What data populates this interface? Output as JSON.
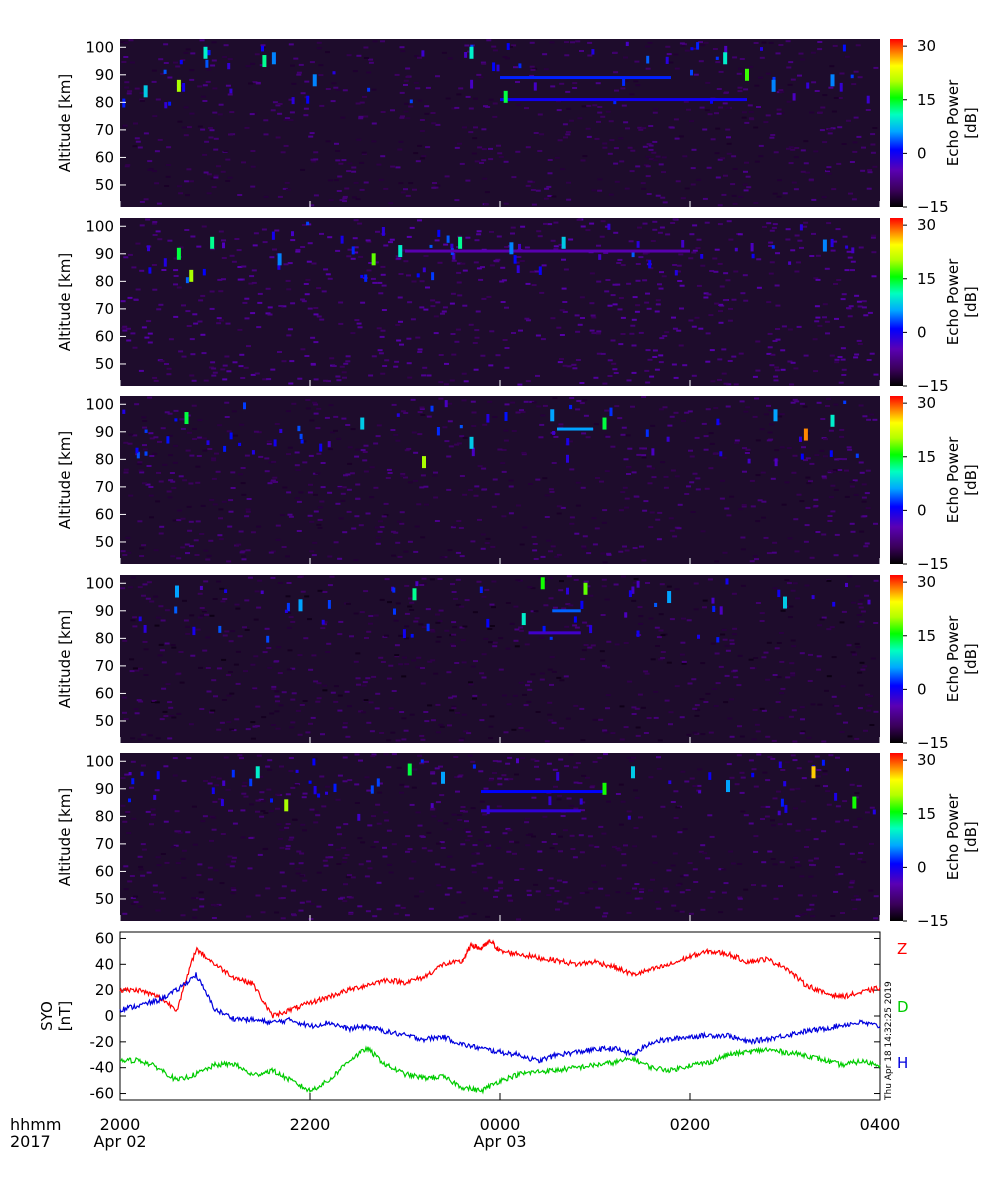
{
  "chart_data": [
    {
      "type": "heatmap",
      "panel": 1,
      "ylabel": "Altitude [km]",
      "yticks": [
        50,
        60,
        70,
        80,
        90,
        100
      ],
      "ylim": [
        42,
        103
      ],
      "colorbar": {
        "label_line1": "Echo Power",
        "label_line2": "[dB]",
        "ticks": [
          -15,
          0,
          15,
          30
        ],
        "range": [
          -15,
          32
        ]
      },
      "background_level_db": -12,
      "layers": [
        {
          "x_start": 0.0,
          "x_end": 2.6,
          "alt": 81,
          "db": 0
        },
        {
          "x_start": 0.0,
          "x_end": 1.8,
          "alt": 89,
          "db": 2
        }
      ],
      "echoes": [
        {
          "x": -3.73,
          "alt": 84,
          "db": 8
        },
        {
          "x": -3.38,
          "alt": 86,
          "db": 20
        },
        {
          "x": -3.1,
          "alt": 98,
          "db": 10
        },
        {
          "x": -2.48,
          "alt": 95,
          "db": 12
        },
        {
          "x": -2.38,
          "alt": 96,
          "db": 5
        },
        {
          "x": -1.95,
          "alt": 88,
          "db": 5
        },
        {
          "x": -0.3,
          "alt": 98,
          "db": 10
        },
        {
          "x": 0.06,
          "alt": 82,
          "db": 14
        },
        {
          "x": 2.37,
          "alt": 96,
          "db": 10
        },
        {
          "x": 2.6,
          "alt": 90,
          "db": 17
        },
        {
          "x": 2.88,
          "alt": 86,
          "db": 5
        },
        {
          "x": 3.5,
          "alt": 88,
          "db": 5
        }
      ]
    },
    {
      "type": "heatmap",
      "panel": 2,
      "ylabel": "Altitude [km]",
      "yticks": [
        50,
        60,
        70,
        80,
        90,
        100
      ],
      "ylim": [
        42,
        103
      ],
      "colorbar": {
        "label_line1": "Echo Power",
        "label_line2": "[dB]",
        "ticks": [
          -15,
          0,
          15,
          30
        ],
        "range": [
          -15,
          32
        ]
      },
      "background_level_db": -10,
      "layers": [
        {
          "x_start": -1.0,
          "x_end": 2.0,
          "alt": 91,
          "db": -5
        }
      ],
      "echoes": [
        {
          "x": -3.38,
          "alt": 90,
          "db": 14
        },
        {
          "x": -3.25,
          "alt": 82,
          "db": 20
        },
        {
          "x": -3.03,
          "alt": 94,
          "db": 12
        },
        {
          "x": -2.32,
          "alt": 88,
          "db": 5
        },
        {
          "x": -1.33,
          "alt": 88,
          "db": 18
        },
        {
          "x": -1.05,
          "alt": 91,
          "db": 10
        },
        {
          "x": -0.42,
          "alt": 94,
          "db": 12
        },
        {
          "x": 0.12,
          "alt": 92,
          "db": 5
        },
        {
          "x": 0.67,
          "alt": 94,
          "db": 8
        },
        {
          "x": 3.42,
          "alt": 93,
          "db": 5
        }
      ]
    },
    {
      "type": "heatmap",
      "panel": 3,
      "ylabel": "Altitude [km]",
      "yticks": [
        50,
        60,
        70,
        80,
        90,
        100
      ],
      "ylim": [
        42,
        103
      ],
      "colorbar": {
        "label_line1": "Echo Power",
        "label_line2": "[dB]",
        "ticks": [
          -15,
          0,
          15,
          30
        ],
        "range": [
          -15,
          32
        ]
      },
      "background_level_db": -12,
      "layers": [
        {
          "x_start": 0.6,
          "x_end": 0.98,
          "alt": 91,
          "db": 6
        }
      ],
      "echoes": [
        {
          "x": -3.3,
          "alt": 95,
          "db": 14
        },
        {
          "x": -1.45,
          "alt": 93,
          "db": 8
        },
        {
          "x": -0.8,
          "alt": 79,
          "db": 20
        },
        {
          "x": -0.3,
          "alt": 86,
          "db": 8
        },
        {
          "x": 0.55,
          "alt": 96,
          "db": 6
        },
        {
          "x": 1.1,
          "alt": 93,
          "db": 14
        },
        {
          "x": 2.9,
          "alt": 96,
          "db": 6
        },
        {
          "x": 3.22,
          "alt": 89,
          "db": 28
        },
        {
          "x": 3.5,
          "alt": 94,
          "db": 10
        }
      ]
    },
    {
      "type": "heatmap",
      "panel": 4,
      "ylabel": "Altitude [km]",
      "yticks": [
        50,
        60,
        70,
        80,
        90,
        100
      ],
      "ylim": [
        42,
        103
      ],
      "colorbar": {
        "label_line1": "Echo Power",
        "label_line2": "[dB]",
        "ticks": [
          -15,
          0,
          15,
          30
        ],
        "range": [
          -15,
          32
        ]
      },
      "background_level_db": -13,
      "layers": [
        {
          "x_start": 0.3,
          "x_end": 0.85,
          "alt": 82,
          "db": -3
        },
        {
          "x_start": 0.55,
          "x_end": 0.85,
          "alt": 90,
          "db": 4
        }
      ],
      "echoes": [
        {
          "x": -3.4,
          "alt": 97,
          "db": 6
        },
        {
          "x": -2.1,
          "alt": 92,
          "db": 6
        },
        {
          "x": -0.9,
          "alt": 96,
          "db": 12
        },
        {
          "x": 0.25,
          "alt": 87,
          "db": 10
        },
        {
          "x": 0.45,
          "alt": 100,
          "db": 16
        },
        {
          "x": 0.9,
          "alt": 98,
          "db": 18
        },
        {
          "x": 1.78,
          "alt": 95,
          "db": 6
        },
        {
          "x": 3.0,
          "alt": 93,
          "db": 8
        }
      ]
    },
    {
      "type": "heatmap",
      "panel": 5,
      "ylabel": "Altitude [km]",
      "yticks": [
        50,
        60,
        70,
        80,
        90,
        100
      ],
      "ylim": [
        42,
        103
      ],
      "colorbar": {
        "label_line1": "Echo Power",
        "label_line2": "[dB]",
        "ticks": [
          -15,
          0,
          15,
          30
        ],
        "range": [
          -15,
          32
        ]
      },
      "background_level_db": -12,
      "layers": [
        {
          "x_start": -0.2,
          "x_end": 0.85,
          "alt": 82,
          "db": -2
        },
        {
          "x_start": -0.2,
          "x_end": 1.1,
          "alt": 89,
          "db": 1
        }
      ],
      "echoes": [
        {
          "x": -2.55,
          "alt": 96,
          "db": 10
        },
        {
          "x": -2.25,
          "alt": 84,
          "db": 20
        },
        {
          "x": -0.95,
          "alt": 97,
          "db": 14
        },
        {
          "x": -0.6,
          "alt": 94,
          "db": 6
        },
        {
          "x": 1.1,
          "alt": 90,
          "db": 16
        },
        {
          "x": 1.4,
          "alt": 96,
          "db": 8
        },
        {
          "x": 2.4,
          "alt": 91,
          "db": 6
        },
        {
          "x": 3.3,
          "alt": 96,
          "db": 26
        },
        {
          "x": 3.73,
          "alt": 85,
          "db": 16
        }
      ]
    },
    {
      "type": "line",
      "panel": 6,
      "ylabel_line1": "SYO",
      "ylabel_line2": "[nT]",
      "ylim": [
        -65,
        65
      ],
      "yticks": [
        -60,
        -40,
        -20,
        0,
        20,
        40,
        60
      ],
      "series": [
        {
          "name": "Z",
          "color": "#ff0000",
          "x": [
            -4.0,
            -3.8,
            -3.6,
            -3.4,
            -3.2,
            -3.0,
            -2.8,
            -2.6,
            -2.4,
            -2.2,
            -2.0,
            -1.8,
            -1.6,
            -1.4,
            -1.2,
            -1.0,
            -0.8,
            -0.6,
            -0.4,
            -0.3,
            -0.2,
            -0.1,
            0.0,
            0.2,
            0.4,
            0.6,
            0.8,
            1.0,
            1.2,
            1.4,
            1.6,
            1.8,
            2.0,
            2.2,
            2.4,
            2.6,
            2.8,
            3.0,
            3.2,
            3.4,
            3.6,
            3.8,
            4.0
          ],
          "y": [
            20,
            20,
            15,
            5,
            52,
            40,
            30,
            25,
            0,
            5,
            10,
            15,
            20,
            24,
            28,
            26,
            30,
            40,
            42,
            55,
            52,
            58,
            50,
            48,
            45,
            43,
            40,
            42,
            38,
            32,
            36,
            40,
            46,
            50,
            48,
            42,
            44,
            38,
            25,
            18,
            15,
            18,
            22
          ]
        },
        {
          "name": "D",
          "color": "#00cc00",
          "x": [
            -4.0,
            -3.8,
            -3.6,
            -3.4,
            -3.2,
            -3.0,
            -2.8,
            -2.6,
            -2.4,
            -2.2,
            -2.0,
            -1.8,
            -1.6,
            -1.4,
            -1.2,
            -1.0,
            -0.8,
            -0.6,
            -0.4,
            -0.2,
            0.0,
            0.2,
            0.4,
            0.6,
            0.8,
            1.0,
            1.2,
            1.4,
            1.6,
            1.8,
            2.0,
            2.2,
            2.4,
            2.6,
            2.8,
            3.0,
            3.2,
            3.4,
            3.6,
            3.8,
            4.0
          ],
          "y": [
            -35,
            -34,
            -40,
            -50,
            -45,
            -38,
            -37,
            -46,
            -42,
            -50,
            -58,
            -50,
            -35,
            -25,
            -38,
            -45,
            -48,
            -47,
            -55,
            -58,
            -50,
            -45,
            -43,
            -42,
            -40,
            -38,
            -36,
            -33,
            -40,
            -42,
            -38,
            -36,
            -30,
            -28,
            -26,
            -28,
            -30,
            -34,
            -38,
            -35,
            -38
          ]
        },
        {
          "name": "H",
          "color": "#0000dd",
          "x": [
            -4.0,
            -3.8,
            -3.6,
            -3.4,
            -3.2,
            -3.0,
            -2.8,
            -2.6,
            -2.4,
            -2.2,
            -2.0,
            -1.8,
            -1.6,
            -1.4,
            -1.2,
            -1.0,
            -0.8,
            -0.6,
            -0.4,
            -0.2,
            0.0,
            0.2,
            0.4,
            0.6,
            0.8,
            1.0,
            1.2,
            1.4,
            1.6,
            1.8,
            2.0,
            2.2,
            2.4,
            2.6,
            2.8,
            3.0,
            3.2,
            3.4,
            3.6,
            3.8,
            4.0
          ],
          "y": [
            5,
            8,
            12,
            20,
            32,
            5,
            -2,
            -3,
            -5,
            -3,
            -8,
            -5,
            -10,
            -8,
            -12,
            -15,
            -18,
            -16,
            -22,
            -25,
            -28,
            -30,
            -35,
            -30,
            -28,
            -26,
            -25,
            -30,
            -20,
            -18,
            -16,
            -15,
            -15,
            -20,
            -18,
            -15,
            -12,
            -10,
            -7,
            -5,
            -8
          ]
        }
      ]
    }
  ],
  "time_axis": {
    "prefix_top": "hhmm",
    "prefix_bottom": "2017",
    "ticks": [
      {
        "x": -4,
        "top": "2000",
        "bottom": "Apr 02"
      },
      {
        "x": -2,
        "top": "2200",
        "bottom": ""
      },
      {
        "x": 0,
        "top": "0000",
        "bottom": "Apr 03"
      },
      {
        "x": 2,
        "top": "0200",
        "bottom": ""
      },
      {
        "x": 4,
        "top": "0400",
        "bottom": ""
      }
    ],
    "xlim": [
      -4,
      4
    ]
  },
  "series_labels": {
    "z": "Z",
    "d": "D",
    "h": "H"
  },
  "timestamp": "Thu Apr 18 14:32:25 2019"
}
